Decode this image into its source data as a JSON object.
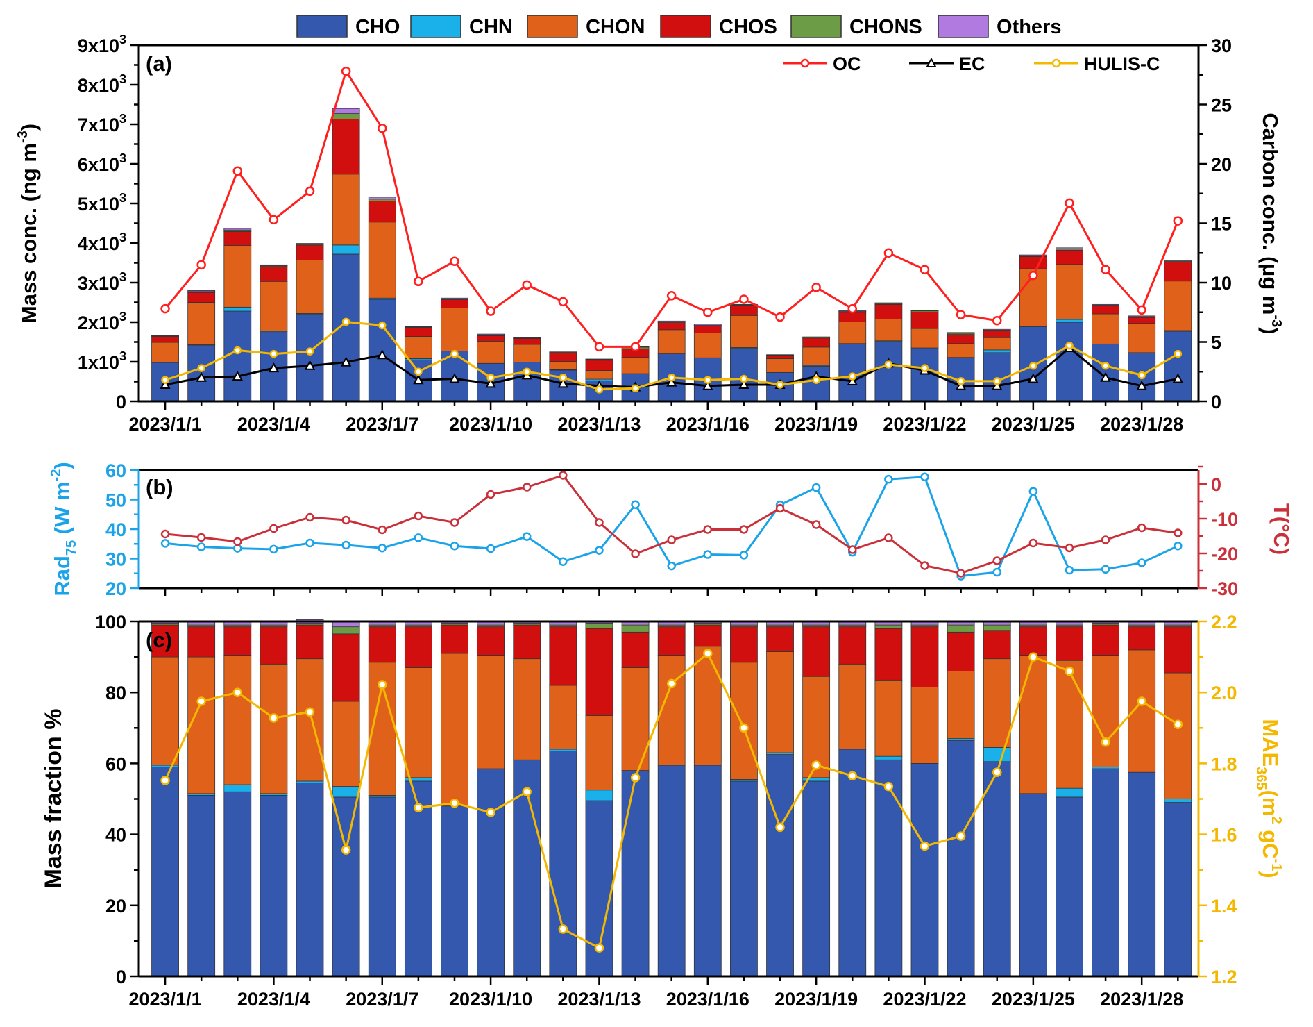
{
  "colors": {
    "CHO": "#3358ad",
    "CHN": "#1ab0ea",
    "CHON": "#e0621a",
    "CHOS": "#d10f0f",
    "CHONS": "#6c9c45",
    "Others": "#b07ae0",
    "OC": "#ff1f1f",
    "EC": "#000000",
    "HULIS": "#f5b800",
    "Rad": "#1aa3e8",
    "T": "#c9303a",
    "MAE": "#f5b800"
  },
  "legend": {
    "items": [
      "CHO",
      "CHN",
      "CHON",
      "CHOS",
      "CHONS",
      "Others"
    ],
    "lines": [
      "OC",
      "EC",
      "HULIS-C"
    ]
  },
  "x_tick_labels": [
    "2023/1/1",
    "2023/1/4",
    "2023/1/7",
    "2023/1/10",
    "2023/1/13",
    "2023/1/16",
    "2023/1/19",
    "2023/1/22",
    "2023/1/25",
    "2023/1/28"
  ],
  "chart_data": [
    {
      "panel": "(a)",
      "type": "bar",
      "stacked": true,
      "x": [
        "2023/1/1",
        "2023/1/2",
        "2023/1/3",
        "2023/1/4",
        "2023/1/5",
        "2023/1/6",
        "2023/1/7",
        "2023/1/8",
        "2023/1/9",
        "2023/1/10",
        "2023/1/11",
        "2023/1/12",
        "2023/1/13",
        "2023/1/14",
        "2023/1/15",
        "2023/1/16",
        "2023/1/17",
        "2023/1/18",
        "2023/1/19",
        "2023/1/20",
        "2023/1/21",
        "2023/1/22",
        "2023/1/23",
        "2023/1/24",
        "2023/1/25",
        "2023/1/26",
        "2023/1/27",
        "2023/1/28",
        "2023/1/29"
      ],
      "ylabel": "Mass conc. (ng m",
      "ylabel_sup": "-3",
      "ylim": [
        0,
        9000
      ],
      "yticks": [
        {
          "base": "0",
          "exp": ""
        },
        {
          "base": "1x10",
          "exp": "3"
        },
        {
          "base": "2x10",
          "exp": "3"
        },
        {
          "base": "3x10",
          "exp": "3"
        },
        {
          "base": "4x10",
          "exp": "3"
        },
        {
          "base": "5x10",
          "exp": "3"
        },
        {
          "base": "6x10",
          "exp": "3"
        },
        {
          "base": "7x10",
          "exp": "3"
        },
        {
          "base": "8x10",
          "exp": "3"
        },
        {
          "base": "9x10",
          "exp": "3"
        }
      ],
      "series": [
        {
          "name": "CHO",
          "values": [
            980,
            1420,
            2280,
            1760,
            2200,
            3720,
            2580,
            1050,
            1270,
            960,
            990,
            790,
            520,
            700,
            1200,
            1100,
            1340,
            730,
            890,
            1460,
            1510,
            1350,
            1110,
            1230,
            1890,
            2000,
            1450,
            1230,
            1770
          ]
        },
        {
          "name": "CHN",
          "values": [
            0,
            10,
            100,
            20,
            20,
            230,
            30,
            30,
            0,
            0,
            0,
            10,
            40,
            0,
            0,
            0,
            20,
            0,
            20,
            0,
            20,
            0,
            0,
            70,
            0,
            70,
            0,
            0,
            20
          ]
        },
        {
          "name": "CHON",
          "values": [
            510,
            1070,
            1560,
            1250,
            1350,
            1790,
            1920,
            560,
            1090,
            560,
            450,
            210,
            220,
            410,
            610,
            630,
            810,
            350,
            460,
            550,
            550,
            490,
            350,
            310,
            1460,
            1390,
            760,
            740,
            1250
          ]
        },
        {
          "name": "CHOS",
          "values": [
            150,
            250,
            350,
            380,
            380,
            1390,
            530,
            220,
            210,
            140,
            150,
            210,
            260,
            220,
            180,
            180,
            250,
            80,
            230,
            240,
            370,
            420,
            230,
            170,
            310,
            360,
            200,
            150,
            480
          ]
        },
        {
          "name": "CHONS",
          "values": [
            15,
            25,
            40,
            20,
            20,
            140,
            50,
            15,
            20,
            20,
            15,
            20,
            20,
            40,
            20,
            10,
            15,
            10,
            20,
            20,
            20,
            30,
            30,
            20,
            20,
            30,
            20,
            20,
            20
          ]
        },
        {
          "name": "Others",
          "values": [
            15,
            25,
            40,
            20,
            20,
            130,
            50,
            15,
            20,
            20,
            15,
            10,
            10,
            10,
            20,
            30,
            15,
            10,
            10,
            20,
            20,
            10,
            20,
            20,
            20,
            30,
            20,
            20,
            20
          ]
        }
      ],
      "y2label": "Carbon conc. (μg m",
      "y2label_sup": "-3",
      "y2lim": [
        0,
        30
      ],
      "y2ticks": [
        0,
        5,
        10,
        15,
        20,
        25,
        30
      ],
      "lines": [
        {
          "name": "OC",
          "values": [
            7.8,
            11.5,
            19.4,
            15.3,
            17.7,
            27.8,
            23.0,
            10.1,
            11.8,
            7.6,
            9.8,
            8.4,
            4.6,
            4.6,
            8.9,
            7.5,
            8.6,
            7.1,
            9.6,
            7.8,
            12.5,
            11.1,
            7.3,
            6.8,
            10.6,
            16.7,
            11.1,
            7.7,
            15.2
          ]
        },
        {
          "name": "EC",
          "values": [
            1.4,
            2.0,
            2.1,
            2.8,
            3.0,
            3.3,
            3.9,
            1.8,
            1.9,
            1.5,
            2.2,
            1.5,
            1.3,
            1.2,
            1.6,
            1.3,
            1.4,
            1.4,
            2.1,
            1.7,
            3.2,
            2.6,
            1.3,
            1.3,
            1.9,
            4.5,
            2.0,
            1.3,
            1.9
          ]
        },
        {
          "name": "HULIS-C",
          "values": [
            1.8,
            2.8,
            4.3,
            4.0,
            4.2,
            6.7,
            6.4,
            2.5,
            4.0,
            2.0,
            2.5,
            2.0,
            1.0,
            1.1,
            2.0,
            1.8,
            1.9,
            1.4,
            1.8,
            2.1,
            3.1,
            2.8,
            1.7,
            1.7,
            3.0,
            4.7,
            3.0,
            2.2,
            4.0
          ]
        }
      ],
      "legend_position": "top"
    },
    {
      "panel": "(b)",
      "type": "line",
      "x": [
        "2023/1/1",
        "2023/1/2",
        "2023/1/3",
        "2023/1/4",
        "2023/1/5",
        "2023/1/6",
        "2023/1/7",
        "2023/1/8",
        "2023/1/9",
        "2023/1/10",
        "2023/1/11",
        "2023/1/12",
        "2023/1/13",
        "2023/1/14",
        "2023/1/15",
        "2023/1/16",
        "2023/1/17",
        "2023/1/18",
        "2023/1/19",
        "2023/1/20",
        "2023/1/21",
        "2023/1/22",
        "2023/1/23",
        "2023/1/24",
        "2023/1/25",
        "2023/1/26",
        "2023/1/27",
        "2023/1/28",
        "2023/1/29"
      ],
      "ylabel": "Rad",
      "ylabel_sub": "75",
      "ylabel_rest": " (W m",
      "ylabel_sup": "-2",
      "ylim": [
        20,
        60
      ],
      "yticks": [
        20,
        30,
        40,
        50,
        60
      ],
      "y2label": "T(°C)",
      "y2lim": [
        -30,
        4
      ],
      "y2ticks": [
        -30,
        -20,
        -10,
        0
      ],
      "series": [
        {
          "name": "Rad75",
          "values": [
            35.2,
            34.0,
            33.5,
            33.2,
            35.3,
            34.6,
            33.6,
            37.1,
            34.3,
            33.4,
            37.5,
            29.0,
            32.8,
            48.3,
            27.5,
            31.4,
            31.2,
            48.2,
            54.1,
            32.2,
            56.9,
            57.7,
            24.1,
            25.4,
            52.8,
            26.1,
            26.4,
            28.6,
            34.3
          ]
        },
        {
          "name": "T",
          "values": [
            -14.4,
            -15.4,
            -16.6,
            -12.8,
            -9.6,
            -10.4,
            -13.2,
            -9.2,
            -11.1,
            -3.0,
            -0.9,
            2.5,
            -11.1,
            -20.1,
            -16.1,
            -13.1,
            -13.1,
            -7.0,
            -11.7,
            -18.9,
            -15.5,
            -23.5,
            -25.7,
            -22.1,
            -17.0,
            -18.4,
            -16.1,
            -12.6,
            -14.1
          ]
        }
      ]
    },
    {
      "panel": "(c)",
      "type": "bar",
      "stacked": true,
      "x": [
        "2023/1/1",
        "2023/1/2",
        "2023/1/3",
        "2023/1/4",
        "2023/1/5",
        "2023/1/6",
        "2023/1/7",
        "2023/1/8",
        "2023/1/9",
        "2023/1/10",
        "2023/1/11",
        "2023/1/12",
        "2023/1/13",
        "2023/1/14",
        "2023/1/15",
        "2023/1/16",
        "2023/1/17",
        "2023/1/18",
        "2023/1/19",
        "2023/1/20",
        "2023/1/21",
        "2023/1/22",
        "2023/1/23",
        "2023/1/24",
        "2023/1/25",
        "2023/1/26",
        "2023/1/27",
        "2023/1/28",
        "2023/1/29"
      ],
      "ylabel": "Mass fraction %",
      "ylim": [
        0,
        100
      ],
      "yticks": [
        0,
        20,
        40,
        60,
        80,
        100
      ],
      "series": [
        {
          "name": "CHO",
          "values": [
            59,
            51,
            52,
            51,
            54.5,
            50.5,
            50.5,
            55,
            48,
            58.5,
            61,
            63.5,
            49.5,
            58,
            59.5,
            59.5,
            55,
            62.5,
            55,
            64,
            61,
            60,
            66.5,
            60.5,
            51.5,
            50.5,
            58.5,
            57.5,
            49
          ]
        },
        {
          "name": "CHN",
          "values": [
            0.5,
            0.5,
            2,
            0.5,
            0.5,
            3,
            0.5,
            1,
            0,
            0,
            0,
            0.5,
            3,
            0,
            0,
            0,
            0.5,
            0.5,
            1,
            0,
            1,
            0,
            0.5,
            4,
            0,
            2.5,
            0.5,
            0,
            1
          ]
        },
        {
          "name": "CHON",
          "values": [
            30.5,
            38.5,
            36.5,
            36.5,
            34.5,
            24,
            37.5,
            31,
            43,
            32,
            28.5,
            18,
            21,
            29,
            31,
            33.5,
            33,
            28.5,
            28.5,
            24,
            21.5,
            21.5,
            19,
            25,
            39,
            36,
            31.5,
            34.5,
            35.5
          ]
        },
        {
          "name": "CHOS",
          "values": [
            9,
            8.5,
            8,
            10.5,
            9.5,
            19,
            10,
            11.5,
            8,
            8,
            9.5,
            16.5,
            24.5,
            10,
            8,
            6,
            10,
            7,
            14,
            10.5,
            14.5,
            17,
            11,
            8,
            8,
            9.5,
            8.5,
            6.5,
            13
          ]
        },
        {
          "name": "CHONS",
          "values": [
            0.5,
            0.5,
            0.5,
            0.5,
            0.5,
            2,
            0.5,
            0.5,
            0.5,
            0.5,
            0.5,
            0.5,
            1.5,
            2,
            0.5,
            0.5,
            0.5,
            0.5,
            0.5,
            0.5,
            1,
            0.5,
            2,
            1.5,
            0.5,
            0.5,
            0.5,
            0.5,
            0.5
          ]
        },
        {
          "name": "Others",
          "values": [
            0.5,
            1,
            1,
            1,
            1,
            1.5,
            1,
            1,
            0.5,
            1,
            0.5,
            1,
            0.5,
            1,
            1,
            0.5,
            1,
            1,
            1,
            1,
            1,
            1,
            1,
            1,
            1,
            1,
            0.5,
            1,
            1
          ]
        }
      ],
      "y2label": "MAE",
      "y2label_sub": "365",
      "y2label_rest": "(m",
      "y2label_sup1": "2",
      "y2label_mid": " gC",
      "y2label_sup2": "-1",
      "y2label_end": ")",
      "y2lim": [
        1.2,
        2.2
      ],
      "y2ticks": [
        "1.2",
        "1.4",
        "1.6",
        "1.8",
        "2.0",
        "2.2"
      ],
      "lines": [
        {
          "name": "MAE365",
          "values": [
            1.752,
            1.975,
            2.0,
            1.928,
            1.945,
            1.556,
            2.022,
            1.675,
            1.688,
            1.662,
            1.72,
            1.333,
            1.28,
            1.76,
            2.025,
            2.11,
            1.9,
            1.62,
            1.795,
            1.765,
            1.735,
            1.567,
            1.595,
            1.775,
            2.1,
            2.06,
            1.86,
            1.975,
            1.91
          ]
        }
      ]
    }
  ]
}
